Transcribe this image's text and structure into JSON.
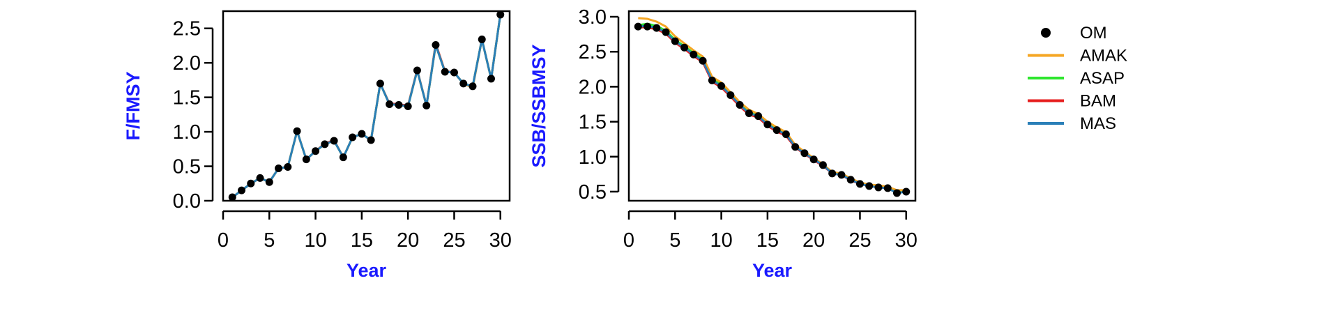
{
  "colors": {
    "om": "#000000",
    "axis_title": "#1a1aff",
    "series": {
      "AMAK": "#f5a623",
      "ASAP": "#2ee62e",
      "BAM": "#e61e1e",
      "MAS": "#2a7fb8"
    }
  },
  "legend": {
    "items": [
      {
        "label": "OM",
        "key": "OM",
        "marker": "point"
      },
      {
        "label": "AMAK",
        "key": "AMAK",
        "marker": "line"
      },
      {
        "label": "ASAP",
        "key": "ASAP",
        "marker": "line"
      },
      {
        "label": "BAM",
        "key": "BAM",
        "marker": "line"
      },
      {
        "label": "MAS",
        "key": "MAS",
        "marker": "line"
      }
    ]
  },
  "chart_data": [
    {
      "type": "line",
      "xlabel": "Year",
      "ylabel": "F/FMSY",
      "xlim": [
        0,
        31
      ],
      "ylim": [
        0,
        2.75
      ],
      "xticks": [
        "0",
        "5",
        "10",
        "15",
        "20",
        "25",
        "30"
      ],
      "yticks": [
        "0.0",
        "0.5",
        "1.0",
        "1.5",
        "2.0",
        "2.5"
      ],
      "x": [
        1,
        2,
        3,
        4,
        5,
        6,
        7,
        8,
        9,
        10,
        11,
        12,
        13,
        14,
        15,
        16,
        17,
        18,
        19,
        20,
        21,
        22,
        23,
        24,
        25,
        26,
        27,
        28,
        29,
        30
      ],
      "points": {
        "name": "OM",
        "values": [
          0.05,
          0.15,
          0.25,
          0.33,
          0.27,
          0.47,
          0.49,
          1.01,
          0.6,
          0.72,
          0.82,
          0.87,
          0.63,
          0.92,
          0.97,
          0.88,
          1.7,
          1.4,
          1.39,
          1.37,
          1.89,
          1.38,
          2.26,
          1.87,
          1.86,
          1.7,
          1.66,
          2.34,
          1.77,
          2.7
        ]
      },
      "series": [
        {
          "name": "AMAK",
          "values": [
            0.05,
            0.15,
            0.25,
            0.33,
            0.27,
            0.47,
            0.49,
            1.01,
            0.6,
            0.72,
            0.82,
            0.87,
            0.63,
            0.92,
            0.97,
            0.88,
            1.7,
            1.4,
            1.39,
            1.37,
            1.89,
            1.38,
            2.26,
            1.87,
            1.86,
            1.7,
            1.64,
            2.34,
            1.77,
            2.7
          ]
        },
        {
          "name": "ASAP",
          "values": [
            0.05,
            0.15,
            0.25,
            0.33,
            0.27,
            0.47,
            0.49,
            1.01,
            0.6,
            0.72,
            0.82,
            0.87,
            0.63,
            0.92,
            0.97,
            0.88,
            1.7,
            1.4,
            1.39,
            1.37,
            1.89,
            1.38,
            2.26,
            1.87,
            1.86,
            1.7,
            1.66,
            2.34,
            1.77,
            2.7
          ]
        },
        {
          "name": "BAM",
          "values": [
            0.05,
            0.15,
            0.25,
            0.33,
            0.27,
            0.47,
            0.49,
            1.01,
            0.6,
            0.72,
            0.83,
            0.88,
            0.63,
            0.92,
            0.97,
            0.88,
            1.7,
            1.41,
            1.4,
            1.38,
            1.9,
            1.38,
            2.28,
            1.88,
            1.86,
            1.7,
            1.66,
            2.34,
            1.77,
            2.7
          ]
        },
        {
          "name": "MAS",
          "values": [
            0.05,
            0.15,
            0.25,
            0.33,
            0.27,
            0.47,
            0.49,
            1.01,
            0.6,
            0.72,
            0.82,
            0.87,
            0.63,
            0.92,
            0.97,
            0.88,
            1.7,
            1.4,
            1.39,
            1.37,
            1.89,
            1.38,
            2.26,
            1.87,
            1.86,
            1.7,
            1.66,
            2.34,
            1.77,
            2.7
          ]
        }
      ]
    },
    {
      "type": "line",
      "xlabel": "Year",
      "ylabel": "SSB/SSBMSY",
      "xlim": [
        0,
        31
      ],
      "ylim": [
        0.37,
        3.08
      ],
      "xticks": [
        "0",
        "5",
        "10",
        "15",
        "20",
        "25",
        "30"
      ],
      "yticks": [
        "0.5",
        "1.0",
        "1.5",
        "2.0",
        "2.5",
        "3.0"
      ],
      "x": [
        1,
        2,
        3,
        4,
        5,
        6,
        7,
        8,
        9,
        10,
        11,
        12,
        13,
        14,
        15,
        16,
        17,
        18,
        19,
        20,
        21,
        22,
        23,
        24,
        25,
        26,
        27,
        28,
        29,
        30
      ],
      "points": {
        "name": "OM",
        "values": [
          2.86,
          2.86,
          2.84,
          2.78,
          2.65,
          2.56,
          2.46,
          2.37,
          2.09,
          2.01,
          1.88,
          1.74,
          1.62,
          1.58,
          1.46,
          1.38,
          1.32,
          1.14,
          1.05,
          0.96,
          0.88,
          0.76,
          0.74,
          0.67,
          0.61,
          0.58,
          0.56,
          0.55,
          0.48,
          0.5
        ]
      },
      "series": [
        {
          "name": "AMAK",
          "values": [
            2.98,
            2.97,
            2.93,
            2.86,
            2.72,
            2.62,
            2.52,
            2.43,
            2.14,
            2.06,
            1.92,
            1.78,
            1.67,
            1.61,
            1.5,
            1.42,
            1.35,
            1.17,
            1.07,
            0.98,
            0.89,
            0.78,
            0.76,
            0.69,
            0.63,
            0.6,
            0.59,
            0.57,
            0.52,
            0.52
          ]
        },
        {
          "name": "ASAP",
          "values": [
            2.88,
            2.9,
            2.87,
            2.8,
            2.67,
            2.58,
            2.48,
            2.39,
            2.11,
            2.03,
            1.89,
            1.75,
            1.63,
            1.59,
            1.47,
            1.39,
            1.33,
            1.15,
            1.06,
            0.97,
            0.88,
            0.77,
            0.75,
            0.67,
            0.62,
            0.59,
            0.57,
            0.56,
            0.5,
            0.51
          ]
        },
        {
          "name": "BAM",
          "values": [
            2.85,
            2.85,
            2.82,
            2.76,
            2.63,
            2.54,
            2.44,
            2.35,
            2.07,
            1.99,
            1.86,
            1.72,
            1.6,
            1.56,
            1.44,
            1.36,
            1.3,
            1.13,
            1.04,
            0.95,
            0.87,
            0.76,
            0.74,
            0.66,
            0.61,
            0.58,
            0.56,
            0.55,
            0.49,
            0.5
          ]
        },
        {
          "name": "MAS",
          "values": [
            2.86,
            2.87,
            2.84,
            2.78,
            2.65,
            2.56,
            2.46,
            2.37,
            2.09,
            2.01,
            1.88,
            1.74,
            1.62,
            1.58,
            1.46,
            1.38,
            1.32,
            1.14,
            1.05,
            0.96,
            0.88,
            0.76,
            0.74,
            0.67,
            0.61,
            0.58,
            0.56,
            0.55,
            0.48,
            0.5
          ]
        }
      ]
    }
  ]
}
